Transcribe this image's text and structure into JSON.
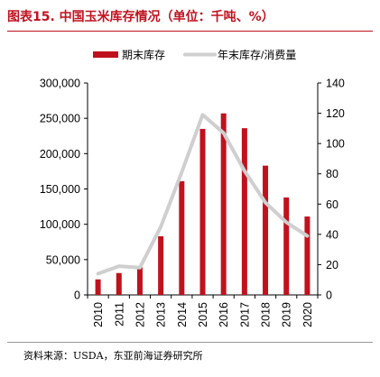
{
  "title": "图表15.  中国玉米库存情况（单位：千吨、%）",
  "source": "资料来源：USDA，东亚前海证券研究所",
  "colors": {
    "title": "#c0121e",
    "bar": "#c0121e",
    "line": "#cfcfcf"
  },
  "chart_data": {
    "type": "bar",
    "categories": [
      "2010",
      "2011",
      "2012",
      "2013",
      "2014",
      "2015",
      "2016",
      "2017",
      "2018",
      "2019",
      "2020"
    ],
    "series": [
      {
        "name": "期末库存",
        "type": "bar",
        "axis": "left",
        "values": [
          22000,
          31000,
          39000,
          83000,
          161000,
          235000,
          257000,
          236000,
          183000,
          138000,
          111000
        ]
      },
      {
        "name": "年末库存/消费量",
        "type": "line",
        "axis": "right",
        "values": [
          14,
          19,
          18,
          45,
          81,
          119,
          107,
          82,
          61,
          48,
          39
        ]
      }
    ],
    "y_left": {
      "ylim": [
        0,
        300000
      ],
      "ticks": [
        0,
        50000,
        100000,
        150000,
        200000,
        250000,
        300000
      ],
      "tick_labels": [
        "0",
        "50,000",
        "100,000",
        "150,000",
        "200,000",
        "250,000",
        "300,000"
      ]
    },
    "y_right": {
      "ylim": [
        0,
        140
      ],
      "ticks": [
        0,
        20,
        40,
        60,
        80,
        100,
        120,
        140
      ],
      "tick_labels": [
        "0",
        "20",
        "40",
        "60",
        "80",
        "100",
        "120",
        "140"
      ]
    },
    "grid": false,
    "legend_position": "top"
  }
}
